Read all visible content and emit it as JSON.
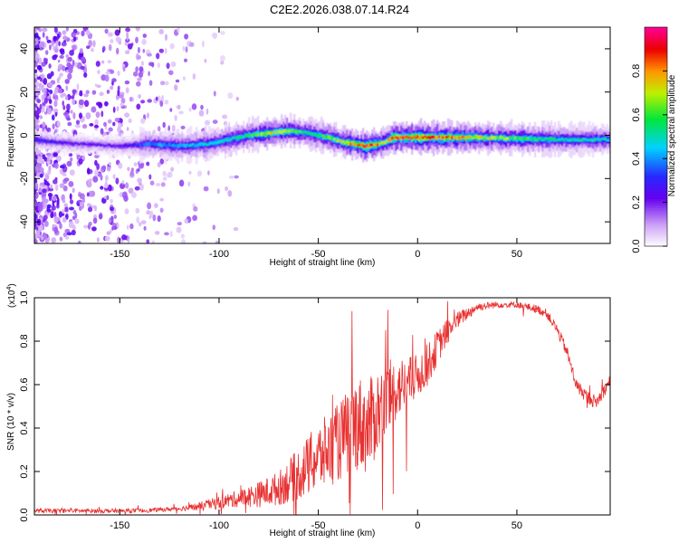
{
  "figure": {
    "title": "C2E2.2026.038.07.14.R24"
  },
  "chart_data": [
    {
      "type": "heatmap",
      "name": "spectrogram",
      "xlabel": "Height of straight line (km)",
      "ylabel": "Frequency (Hz)",
      "xlim": [
        -193,
        97
      ],
      "ylim": [
        -50,
        50
      ],
      "xticks": [
        -150,
        -100,
        -50,
        0,
        50
      ],
      "xtick_labels": [
        "-150",
        "-100",
        "-50",
        "0",
        "50"
      ],
      "yticks": [
        -40,
        -20,
        0,
        20,
        40
      ],
      "ytick_labels": [
        "-40",
        "-20",
        "0",
        "20",
        "40"
      ],
      "ridge": {
        "x": [
          -193,
          -185,
          -170,
          -150,
          -135,
          -120,
          -105,
          -95,
          -85,
          -75,
          -65,
          -55,
          -45,
          -38,
          -32,
          -26,
          -20,
          -16,
          -12,
          -5,
          0,
          10,
          20,
          30,
          50,
          70,
          97
        ],
        "y": [
          -2,
          -3,
          -4,
          -5,
          -4,
          -5,
          -4,
          -2,
          0,
          1,
          2,
          1,
          -1,
          -3,
          -4,
          -5,
          -4,
          -3,
          -1,
          -1,
          -1,
          -1,
          -1,
          -1,
          -1.5,
          -2,
          -2
        ],
        "peak_amplitude": [
          0.35,
          0.3,
          0.25,
          0.25,
          0.4,
          0.45,
          0.5,
          0.55,
          0.6,
          0.75,
          0.7,
          0.55,
          0.65,
          0.75,
          0.85,
          0.95,
          0.85,
          0.7,
          0.95,
          0.9,
          0.95,
          0.9,
          0.85,
          0.75,
          0.65,
          0.55,
          0.5
        ]
      },
      "noise_region": {
        "x_range": [
          -193,
          -90
        ],
        "amplitude": 0.25
      },
      "colorbar": {
        "label": "Normalized spectral amplitude",
        "range": [
          0,
          1
        ],
        "ticks": [
          0.0,
          0.2,
          0.4,
          0.6,
          0.8
        ],
        "tick_labels": [
          "0.0",
          "0.2",
          "0.4",
          "0.6",
          "0.8"
        ]
      }
    },
    {
      "type": "line",
      "name": "snr",
      "xlabel": "Height of straight line (km)",
      "ylabel": "SNR (10 * v/v)",
      "exponent_label": "(x10",
      "exponent_power": "4",
      "exponent_close": ")",
      "line_color": "#e83030",
      "xlim": [
        -193,
        97
      ],
      "ylim": [
        0,
        1.0
      ],
      "xticks": [
        -150,
        -100,
        -50,
        0,
        50
      ],
      "xtick_labels": [
        "-150",
        "-100",
        "-50",
        "0",
        "50"
      ],
      "yticks": [
        0.0,
        0.2,
        0.4,
        0.6,
        0.8,
        1.0
      ],
      "ytick_labels": [
        "0.0",
        "0.2",
        "0.4",
        "0.6",
        "0.8",
        "1.0"
      ],
      "x": [
        -193,
        -180,
        -160,
        -140,
        -120,
        -110,
        -100,
        -90,
        -80,
        -70,
        -60,
        -50,
        -40,
        -30,
        -25,
        -20,
        -15,
        -10,
        -5,
        0,
        5,
        10,
        15,
        20,
        25,
        30,
        40,
        50,
        60,
        65,
        70,
        75,
        80,
        85,
        90,
        97
      ],
      "y": [
        0.02,
        0.02,
        0.02,
        0.02,
        0.03,
        0.04,
        0.06,
        0.08,
        0.1,
        0.13,
        0.2,
        0.28,
        0.35,
        0.45,
        0.42,
        0.5,
        0.55,
        0.6,
        0.62,
        0.65,
        0.7,
        0.78,
        0.85,
        0.9,
        0.93,
        0.96,
        0.97,
        0.97,
        0.95,
        0.93,
        0.86,
        0.76,
        0.6,
        0.55,
        0.52,
        0.62
      ],
      "jitter": [
        0.01,
        0.01,
        0.01,
        0.01,
        0.01,
        0.02,
        0.03,
        0.04,
        0.06,
        0.08,
        0.12,
        0.16,
        0.18,
        0.22,
        0.22,
        0.2,
        0.18,
        0.14,
        0.12,
        0.1,
        0.1,
        0.08,
        0.06,
        0.04,
        0.03,
        0.02,
        0.015,
        0.015,
        0.02,
        0.02,
        0.025,
        0.03,
        0.03,
        0.03,
        0.03,
        0.03
      ]
    }
  ]
}
